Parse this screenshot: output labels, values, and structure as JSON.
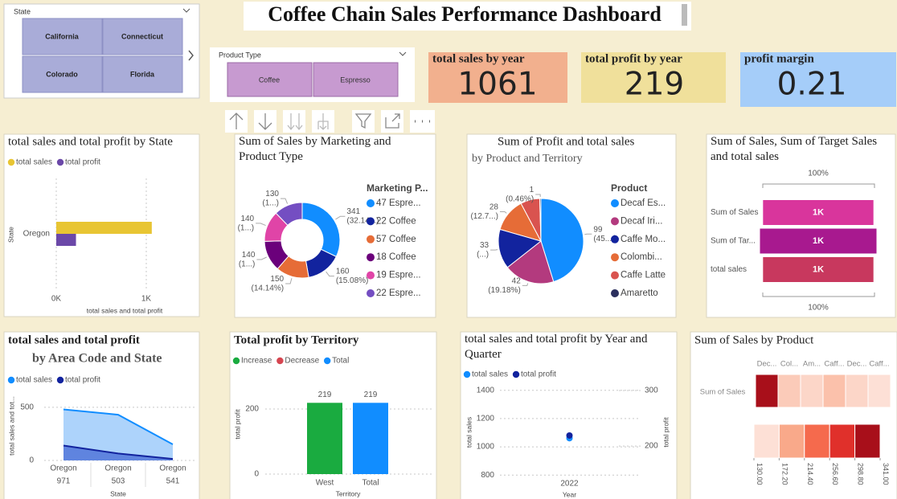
{
  "title": "Coffee Chain Sales Performance Dashboard",
  "slicers": [
    {
      "label": "State",
      "options": [
        "California",
        "Connecticut",
        "Colorado",
        "Florida"
      ]
    },
    {
      "label": "Product Type",
      "options": [
        "Coffee",
        "Espresso"
      ]
    }
  ],
  "cards": [
    {
      "label": "total sales by year",
      "value": 1061
    },
    {
      "label": "total profit by year",
      "value": 219
    },
    {
      "label": "profit margin",
      "value": 0.21
    }
  ],
  "chart_data": [
    {
      "type": "hbar",
      "title": "total sales and total profit by State",
      "categories": [
        "Oregon"
      ],
      "series": [
        {
          "name": "total sales",
          "color": "#e8c533",
          "values": [
            1061
          ]
        },
        {
          "name": "total profit",
          "color": "#6b48a8",
          "values": [
            219
          ]
        }
      ],
      "xlim": [
        0,
        1500
      ],
      "xticks": [
        {
          "value": 0,
          "label": "0K"
        },
        {
          "value": 1000,
          "label": "1K"
        }
      ],
      "xlabel": "total sales and total profit",
      "ylabel": "State",
      "grid": true,
      "legend": "top"
    },
    {
      "type": "donut",
      "title": "Sum of Sales by Marketing and Product Type",
      "legend_title": "Marketing P...",
      "categories": [
        "47 Espre...",
        "22 Coffee",
        "57 Coffee",
        "18 Coffee",
        "19 Espre...",
        "22 Espre..."
      ],
      "values": [
        341,
        160,
        150,
        140,
        140,
        130
      ],
      "value_labels": [
        "341 (32.14...)",
        "160 (15.08%)",
        "150 (14.14%)",
        "140 (1...)",
        "140 (1...)",
        "130 (1...)"
      ],
      "colors": [
        "#118dff",
        "#12239e",
        "#e66c37",
        "#6b007b",
        "#e044a7",
        "#744ec2"
      ],
      "legend": "right"
    },
    {
      "type": "pie",
      "title": "Sum of Profit and total sales",
      "subtitle": "by Product and Territory",
      "legend_title": "Product",
      "categories": [
        "Decaf Es...",
        "Decaf Iri...",
        "Caffe Mo...",
        "Colombi...",
        "Caffe Latte",
        "Amaretto"
      ],
      "values": [
        99,
        42,
        33,
        28,
        16,
        1
      ],
      "value_labels": [
        "99 (45....)",
        "42 (19.18%)",
        "33 (...)",
        "28 (12.7...)",
        null,
        "1 (0.46%)"
      ],
      "colors": [
        "#118dff",
        "#b33a7e",
        "#12239e",
        "#e66c37",
        "#d9534f",
        "#2b2f5e"
      ],
      "legend": "right"
    },
    {
      "type": "funnel",
      "title": "Sum of Sales, Sum of Target Sales and total sales",
      "categories": [
        "Sum of Sales",
        "Sum of Tar...",
        "total sales"
      ],
      "values": [
        1061,
        1120,
        1061
      ],
      "value_labels": [
        "1K",
        "1K",
        "1K"
      ],
      "colors": [
        "#d9359c",
        "#a8198f",
        "#c8385e"
      ],
      "top_label": "100%",
      "bottom_label": "100%"
    },
    {
      "type": "area",
      "title": "total sales and total profit",
      "subtitle": "by Area Code and State",
      "categories": [
        "Oregon",
        "Oregon",
        "Oregon"
      ],
      "subcategories": [
        "971",
        "503",
        "541"
      ],
      "series": [
        {
          "name": "total sales",
          "color": "#118dff",
          "values": [
            480,
            430,
            151
          ]
        },
        {
          "name": "total profit",
          "color": "#12239e",
          "values": [
            140,
            65,
            14
          ]
        }
      ],
      "ylim": [
        0,
        650
      ],
      "yticks": [
        0,
        500
      ],
      "xlabel": "State",
      "ylabel": "total sales and tot...",
      "grid": true,
      "legend": "top"
    },
    {
      "type": "waterfall",
      "title": "Total profit by Territory",
      "legend_items": [
        {
          "name": "Increase",
          "color": "#1aab40"
        },
        {
          "name": "Decrease",
          "color": "#d64550"
        },
        {
          "name": "Total",
          "color": "#118dff"
        }
      ],
      "categories": [
        "West",
        "Total"
      ],
      "values": [
        219,
        219
      ],
      "colors": [
        "#1aab40",
        "#118dff"
      ],
      "ylim": [
        0,
        240
      ],
      "yticks": [
        0,
        200
      ],
      "xlabel": "Territory",
      "ylabel": "total profit",
      "grid": true
    },
    {
      "type": "line",
      "title": "total sales and total profit by Year and Quarter",
      "categories": [
        "2022"
      ],
      "series": [
        {
          "name": "total sales",
          "color": "#118dff",
          "values": [
            1061
          ]
        },
        {
          "name": "total profit",
          "color": "#12239e",
          "values": [
            219
          ],
          "axis": "y2"
        }
      ],
      "ylim": [
        750,
        1450
      ],
      "yticks": [
        800,
        1000,
        1200,
        1400
      ],
      "y2lim": [
        135,
        313
      ],
      "y2ticks": [
        200,
        300
      ],
      "xlabel": "Year",
      "ylabel": "total sales",
      "y2label": "total profit",
      "grid": true,
      "legend": "top"
    },
    {
      "type": "heatmap",
      "title": "Sum of Sales by Product",
      "categories": [
        "Dec...",
        "Col...",
        "Am...",
        "Caff...",
        "Dec...",
        "Caff..."
      ],
      "row": "Sum of Sales",
      "values": [
        341,
        150,
        140,
        160,
        140,
        130
      ],
      "zlim": [
        130,
        341
      ],
      "colors": [
        "#fde0d6",
        "#f9a98a",
        "#f56a4d",
        "#e0302b",
        "#a80f1a"
      ],
      "zticks": [
        {
          "value": 130,
          "label": "130.00"
        },
        {
          "value": 172.2,
          "label": "172.20"
        },
        {
          "value": 214.4,
          "label": "214.40"
        },
        {
          "value": 256.6,
          "label": "256.60"
        },
        {
          "value": 298.8,
          "label": "298.80"
        },
        {
          "value": 341,
          "label": "341.00"
        }
      ]
    }
  ]
}
